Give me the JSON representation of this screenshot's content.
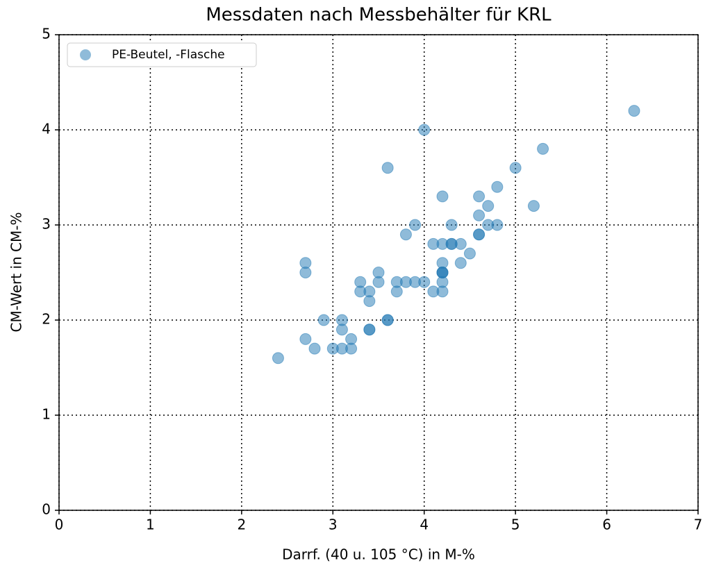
{
  "chart_data": {
    "type": "scatter",
    "title": "Messdaten nach Messbehälter für KRL",
    "xlabel": "Darrf. (40 u. 105 °C) in M-%",
    "ylabel": "CM-Wert in CM-%",
    "xlim": [
      0,
      7
    ],
    "ylim": [
      0,
      5
    ],
    "xticks": [
      0,
      1,
      2,
      3,
      4,
      5,
      6,
      7
    ],
    "yticks": [
      0,
      1,
      2,
      3,
      4,
      5
    ],
    "grid": true,
    "legend": "upper left",
    "series": [
      {
        "name": "PE-Beutel, -Flasche",
        "color": "#1f77b4",
        "x": [
          2.4,
          2.7,
          2.7,
          2.7,
          2.8,
          2.9,
          3.0,
          3.1,
          3.1,
          3.1,
          3.2,
          3.2,
          3.3,
          3.3,
          3.4,
          3.4,
          3.4,
          3.4,
          3.5,
          3.5,
          3.6,
          3.6,
          3.6,
          3.7,
          3.7,
          3.8,
          3.8,
          3.9,
          3.9,
          4.0,
          4.0,
          4.1,
          4.1,
          4.2,
          4.2,
          4.2,
          4.2,
          4.2,
          4.2,
          4.2,
          4.2,
          4.3,
          4.3,
          4.3,
          4.4,
          4.4,
          4.5,
          4.6,
          4.6,
          4.6,
          4.6,
          4.7,
          4.7,
          4.8,
          4.8,
          5.0,
          5.2,
          5.3,
          6.3
        ],
        "values": [
          1.6,
          2.6,
          2.5,
          1.8,
          1.7,
          2.0,
          1.7,
          2.0,
          1.9,
          1.7,
          1.8,
          1.7,
          2.4,
          2.3,
          2.3,
          2.2,
          1.9,
          1.9,
          2.5,
          2.4,
          3.6,
          2.0,
          2.0,
          2.4,
          2.3,
          2.9,
          2.4,
          3.0,
          2.4,
          4.0,
          2.4,
          2.8,
          2.3,
          3.3,
          2.8,
          2.6,
          2.5,
          2.5,
          2.5,
          2.4,
          2.3,
          3.0,
          2.8,
          2.8,
          2.8,
          2.6,
          2.7,
          3.3,
          3.1,
          2.9,
          2.9,
          3.2,
          3.0,
          3.4,
          3.0,
          3.6,
          3.2,
          3.8,
          4.2
        ]
      }
    ]
  }
}
